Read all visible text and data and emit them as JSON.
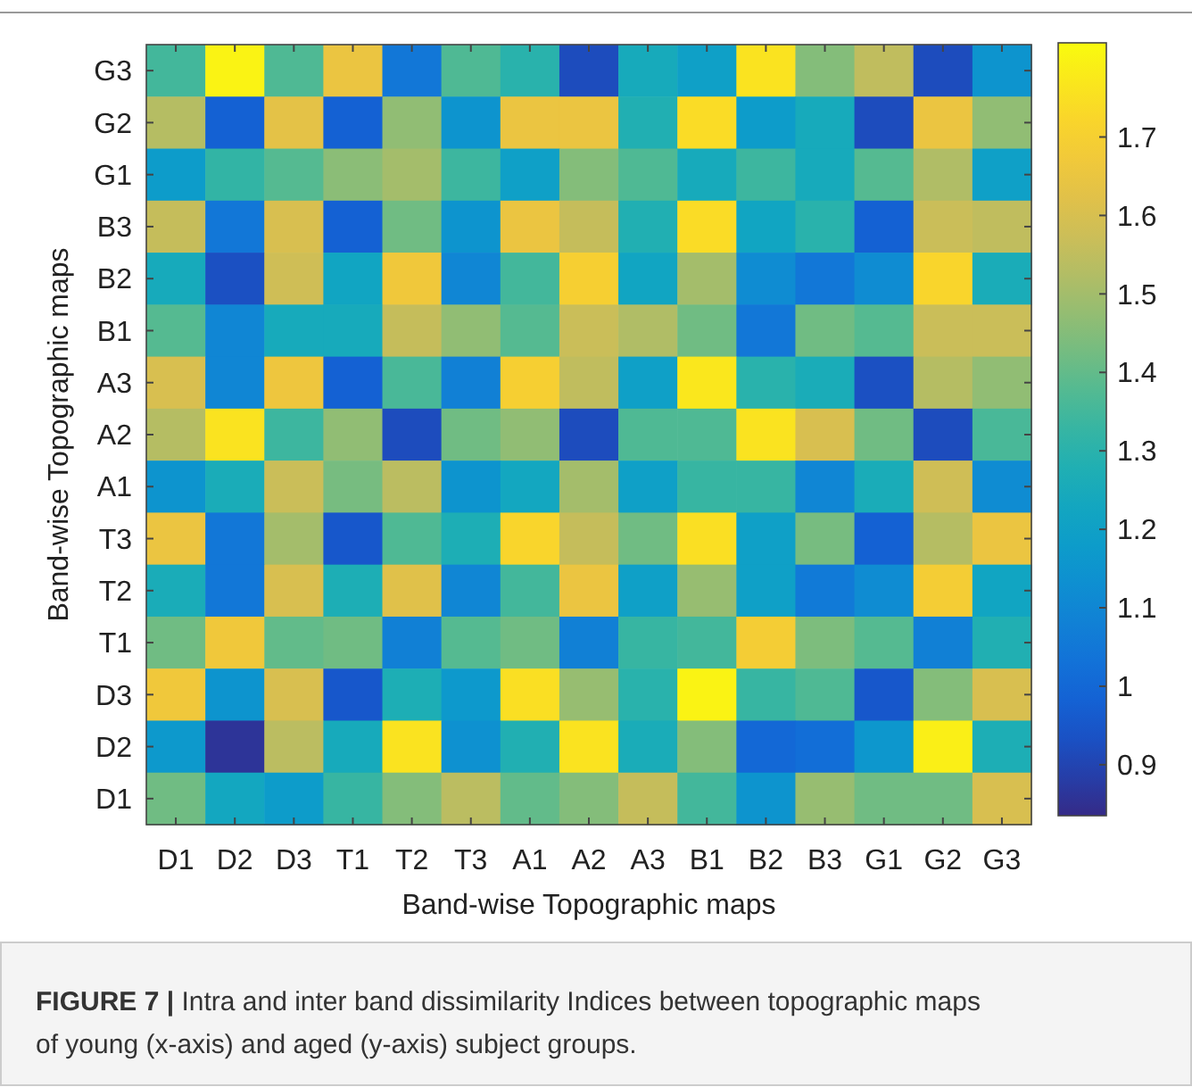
{
  "chart_data": {
    "type": "heatmap",
    "xlabel": "Band-wise Topographic maps",
    "ylabel": "Band-wise Topographic maps",
    "categories": [
      "D1",
      "D2",
      "D3",
      "T1",
      "T2",
      "T3",
      "A1",
      "A2",
      "A3",
      "B1",
      "B2",
      "B3",
      "G1",
      "G2",
      "G3"
    ],
    "y_categories": [
      "G3",
      "G2",
      "G1",
      "B3",
      "B2",
      "B1",
      "A3",
      "A2",
      "A1",
      "T3",
      "T2",
      "T1",
      "D3",
      "D2",
      "D1"
    ],
    "cells": [
      [
        1.35,
        1.8,
        1.37,
        1.65,
        1.05,
        1.37,
        1.3,
        0.92,
        1.25,
        1.2,
        1.76,
        1.45,
        1.55,
        0.92,
        1.15
      ],
      [
        1.53,
        0.98,
        1.63,
        0.98,
        1.47,
        1.15,
        1.65,
        1.65,
        1.28,
        1.74,
        1.18,
        1.25,
        0.92,
        1.65,
        1.47
      ],
      [
        1.18,
        1.32,
        1.38,
        1.46,
        1.5,
        1.34,
        1.2,
        1.45,
        1.37,
        1.25,
        1.34,
        1.25,
        1.38,
        1.52,
        1.2
      ],
      [
        1.56,
        1.05,
        1.6,
        0.98,
        1.42,
        1.15,
        1.65,
        1.56,
        1.28,
        1.74,
        1.22,
        1.3,
        0.98,
        1.57,
        1.55
      ],
      [
        1.25,
        0.93,
        1.58,
        1.22,
        1.67,
        1.1,
        1.35,
        1.7,
        1.22,
        1.5,
        1.12,
        1.05,
        1.12,
        1.72,
        1.26
      ],
      [
        1.38,
        1.1,
        1.25,
        1.25,
        1.56,
        1.47,
        1.38,
        1.57,
        1.52,
        1.42,
        1.05,
        1.42,
        1.38,
        1.57,
        1.57
      ],
      [
        1.6,
        1.1,
        1.66,
        0.98,
        1.36,
        1.08,
        1.7,
        1.55,
        1.2,
        1.77,
        1.3,
        1.26,
        0.93,
        1.53,
        1.47
      ],
      [
        1.53,
        1.76,
        1.34,
        1.47,
        0.92,
        1.42,
        1.47,
        0.92,
        1.37,
        1.37,
        1.76,
        1.6,
        1.42,
        0.92,
        1.36
      ],
      [
        1.15,
        1.26,
        1.57,
        1.43,
        1.54,
        1.15,
        1.23,
        1.5,
        1.2,
        1.33,
        1.33,
        1.1,
        1.26,
        1.58,
        1.12
      ],
      [
        1.65,
        1.05,
        1.5,
        0.95,
        1.37,
        1.27,
        1.72,
        1.56,
        1.42,
        1.75,
        1.2,
        1.43,
        0.98,
        1.53,
        1.65
      ],
      [
        1.26,
        1.05,
        1.6,
        1.27,
        1.62,
        1.1,
        1.35,
        1.65,
        1.2,
        1.48,
        1.2,
        1.06,
        1.12,
        1.69,
        1.22
      ],
      [
        1.42,
        1.67,
        1.4,
        1.42,
        1.08,
        1.38,
        1.42,
        1.08,
        1.33,
        1.35,
        1.69,
        1.44,
        1.38,
        1.08,
        1.28
      ],
      [
        1.67,
        1.15,
        1.6,
        0.95,
        1.27,
        1.17,
        1.75,
        1.48,
        1.3,
        1.8,
        1.33,
        1.37,
        0.95,
        1.45,
        1.6
      ],
      [
        1.17,
        0.86,
        1.54,
        1.25,
        1.76,
        1.14,
        1.28,
        1.76,
        1.26,
        1.45,
        1.0,
        1.02,
        1.16,
        1.79,
        1.27
      ],
      [
        1.42,
        1.23,
        1.18,
        1.33,
        1.45,
        1.54,
        1.4,
        1.45,
        1.56,
        1.35,
        1.15,
        1.48,
        1.42,
        1.42,
        1.6
      ]
    ],
    "clim": [
      0.835,
      1.82
    ],
    "cticks": [
      0.9,
      1,
      1.1,
      1.2,
      1.3,
      1.4,
      1.5,
      1.6,
      1.7
    ],
    "annotations": [
      "FIGURE 7 | Intra and inter band dissimilarity Indices between topographic maps of young (x-axis) and aged (y-axis) subject groups."
    ]
  }
}
